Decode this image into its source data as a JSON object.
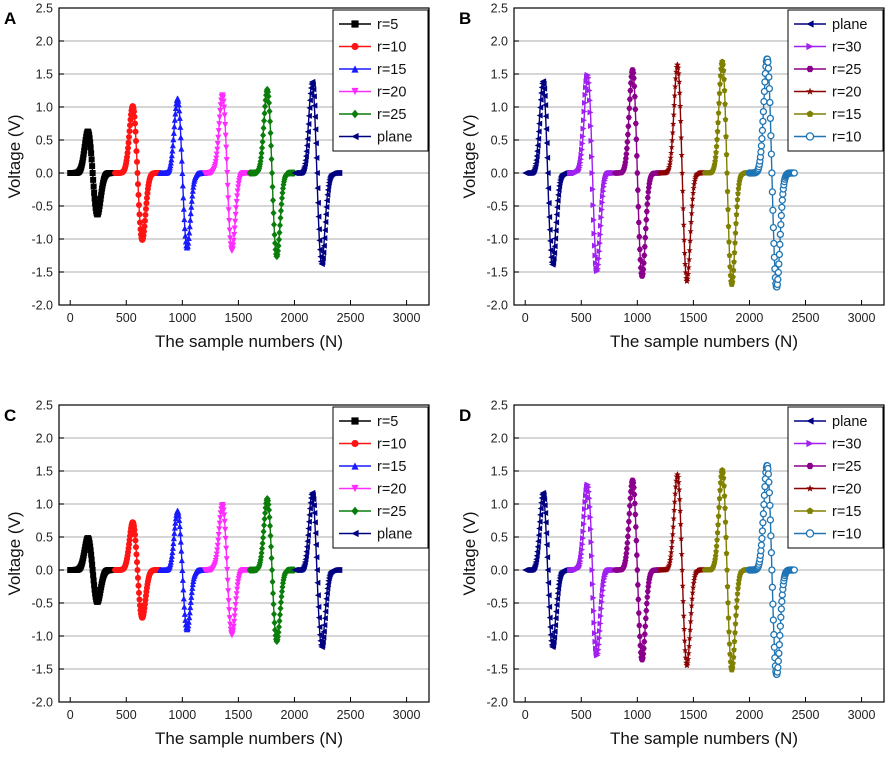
{
  "figure_title": "",
  "colors": {
    "r=5": "#000000",
    "r=10": "#ff1414",
    "r=15": "#1a1aff",
    "r=20": "#ff2bff",
    "r=25": "#0a7d0a",
    "plane": "#000080",
    "r=30": "#a020f0",
    "r=25b": "#8b008b",
    "r=20b": "#8b0000",
    "r=15b": "#808000",
    "r=10b": "#1f75b4",
    "grid": "#c8c8c8"
  },
  "chart_data": [
    {
      "panel": "A",
      "type": "line",
      "xlabel": "The sample numbers (N)",
      "ylabel": "Voltage (V)",
      "xlim": [
        -100,
        3200
      ],
      "ylim": [
        -2.0,
        2.5
      ],
      "xticks": [
        0,
        500,
        1000,
        1500,
        2000,
        2500,
        3000
      ],
      "yticks": [
        -2.0,
        -1.5,
        -1.0,
        -0.5,
        0.0,
        0.5,
        1.0,
        1.5,
        2.0,
        2.5
      ],
      "grid": "horizontal",
      "legend_position": "top-right",
      "series": [
        {
          "name": "r=5",
          "marker": "square",
          "color": "#000000",
          "center": 200,
          "width": 400,
          "peak": 0.65,
          "trough": -0.65
        },
        {
          "name": "r=10",
          "marker": "circle",
          "color": "#ff1414",
          "center": 600,
          "width": 400,
          "peak": 1.05,
          "trough": -1.05
        },
        {
          "name": "r=15",
          "marker": "triangle-up",
          "color": "#1a1aff",
          "center": 1000,
          "width": 400,
          "peak": 1.17,
          "trough": -1.17
        },
        {
          "name": "r=20",
          "marker": "triangle-down",
          "color": "#ff2bff",
          "center": 1400,
          "width": 400,
          "peak": 1.22,
          "trough": -1.22
        },
        {
          "name": "r=25",
          "marker": "diamond",
          "color": "#0a7d0a",
          "center": 1800,
          "width": 400,
          "peak": 1.31,
          "trough": -1.31
        },
        {
          "name": "plane",
          "marker": "triangle-left",
          "color": "#000080",
          "center": 2200,
          "width": 400,
          "peak": 1.43,
          "trough": -1.43
        }
      ]
    },
    {
      "panel": "B",
      "type": "line",
      "xlabel": "The sample numbers (N)",
      "ylabel": "Voltage (V)",
      "xlim": [
        -100,
        3200
      ],
      "ylim": [
        -2.0,
        2.5
      ],
      "xticks": [
        0,
        500,
        1000,
        1500,
        2000,
        2500,
        3000
      ],
      "yticks": [
        -2.0,
        -1.5,
        -1.0,
        -0.5,
        0.0,
        0.5,
        1.0,
        1.5,
        2.0,
        2.5
      ],
      "grid": "horizontal",
      "legend_position": "top-right",
      "series": [
        {
          "name": "plane",
          "marker": "triangle-left",
          "color": "#000080",
          "center": 200,
          "width": 400,
          "peak": 1.44,
          "trough": -1.44
        },
        {
          "name": "r=30",
          "marker": "triangle-right",
          "color": "#a020f0",
          "center": 600,
          "width": 400,
          "peak": 1.54,
          "trough": -1.54
        },
        {
          "name": "r=25",
          "marker": "hexagon",
          "color": "#8b008b",
          "center": 1000,
          "width": 400,
          "peak": 1.62,
          "trough": -1.62
        },
        {
          "name": "r=20",
          "marker": "star",
          "color": "#8b0000",
          "center": 1400,
          "width": 400,
          "peak": 1.7,
          "trough": -1.7
        },
        {
          "name": "r=15",
          "marker": "pentagon",
          "color": "#808000",
          "center": 1800,
          "width": 400,
          "peak": 1.75,
          "trough": -1.75
        },
        {
          "name": "r=10",
          "marker": "sphere",
          "color": "#1f75b4",
          "center": 2200,
          "width": 400,
          "peak": 1.79,
          "trough": -1.79
        }
      ]
    },
    {
      "panel": "C",
      "type": "line",
      "xlabel": "The sample numbers (N)",
      "ylabel": "Voltage (V)",
      "xlim": [
        -100,
        3200
      ],
      "ylim": [
        -2.0,
        2.5
      ],
      "xticks": [
        0,
        500,
        1000,
        1500,
        2000,
        2500,
        3000
      ],
      "yticks": [
        -2.0,
        -1.5,
        -1.0,
        -0.5,
        0.0,
        0.5,
        1.0,
        1.5,
        2.0,
        2.5
      ],
      "grid": "horizontal",
      "legend_position": "top-right",
      "series": [
        {
          "name": "r=5",
          "marker": "square",
          "color": "#000000",
          "center": 200,
          "width": 400,
          "peak": 0.5,
          "trough": -0.5
        },
        {
          "name": "r=10",
          "marker": "circle",
          "color": "#ff1414",
          "center": 600,
          "width": 400,
          "peak": 0.75,
          "trough": -0.75
        },
        {
          "name": "r=15",
          "marker": "triangle-up",
          "color": "#1a1aff",
          "center": 1000,
          "width": 400,
          "peak": 0.93,
          "trough": -0.93
        },
        {
          "name": "r=20",
          "marker": "triangle-down",
          "color": "#ff2bff",
          "center": 1400,
          "width": 400,
          "peak": 1.02,
          "trough": -1.02
        },
        {
          "name": "r=25",
          "marker": "diamond",
          "color": "#0a7d0a",
          "center": 1800,
          "width": 400,
          "peak": 1.12,
          "trough": -1.12
        },
        {
          "name": "plane",
          "marker": "triangle-left",
          "color": "#000080",
          "center": 2200,
          "width": 400,
          "peak": 1.21,
          "trough": -1.21
        }
      ]
    },
    {
      "panel": "D",
      "type": "line",
      "xlabel": "The sample numbers (N)",
      "ylabel": "Voltage (V)",
      "xlim": [
        -100,
        3200
      ],
      "ylim": [
        -2.0,
        2.5
      ],
      "xticks": [
        0,
        500,
        1000,
        1500,
        2000,
        2500,
        3000
      ],
      "yticks": [
        -2.0,
        -1.5,
        -1.0,
        -0.5,
        0.0,
        0.5,
        1.0,
        1.5,
        2.0,
        2.5
      ],
      "grid": "horizontal",
      "legend_position": "top-right",
      "series": [
        {
          "name": "plane",
          "marker": "triangle-left",
          "color": "#000080",
          "center": 200,
          "width": 400,
          "peak": 1.21,
          "trough": -1.21
        },
        {
          "name": "r=30",
          "marker": "triangle-right",
          "color": "#a020f0",
          "center": 600,
          "width": 400,
          "peak": 1.34,
          "trough": -1.34
        },
        {
          "name": "r=25",
          "marker": "hexagon",
          "color": "#8b008b",
          "center": 1000,
          "width": 400,
          "peak": 1.41,
          "trough": -1.41
        },
        {
          "name": "r=20",
          "marker": "star",
          "color": "#8b0000",
          "center": 1400,
          "width": 400,
          "peak": 1.5,
          "trough": -1.5
        },
        {
          "name": "r=15",
          "marker": "pentagon",
          "color": "#808000",
          "center": 1800,
          "width": 400,
          "peak": 1.57,
          "trough": -1.57
        },
        {
          "name": "r=10",
          "marker": "sphere",
          "color": "#1f75b4",
          "center": 2200,
          "width": 400,
          "peak": 1.64,
          "trough": -1.64
        }
      ]
    }
  ]
}
